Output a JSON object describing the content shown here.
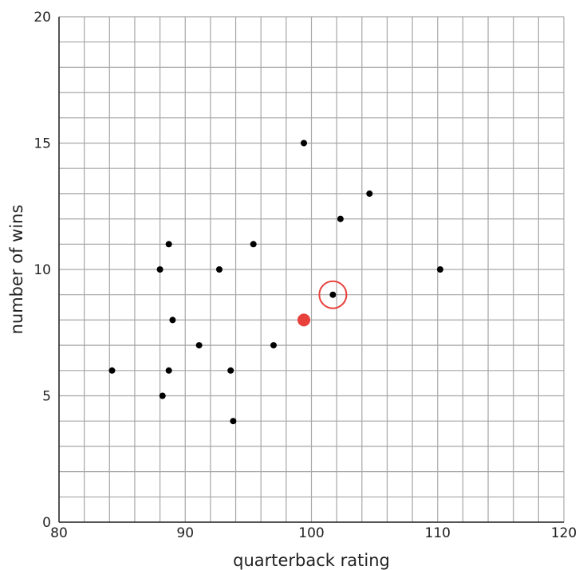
{
  "chart_data": {
    "type": "scatter",
    "xlabel": "quarterback rating",
    "ylabel": "number of wins",
    "xlim": [
      80,
      120
    ],
    "ylim": [
      0,
      20
    ],
    "x_ticks": [
      80,
      90,
      100,
      110,
      120
    ],
    "y_ticks": [
      0,
      5,
      10,
      15,
      20
    ],
    "grid": true,
    "x_minor_step": 2,
    "y_minor_step": 1,
    "points": [
      {
        "x": 84.2,
        "y": 6
      },
      {
        "x": 88.0,
        "y": 10
      },
      {
        "x": 88.2,
        "y": 5
      },
      {
        "x": 88.7,
        "y": 11
      },
      {
        "x": 88.7,
        "y": 6
      },
      {
        "x": 89.0,
        "y": 8
      },
      {
        "x": 91.1,
        "y": 7
      },
      {
        "x": 92.7,
        "y": 10
      },
      {
        "x": 93.6,
        "y": 6
      },
      {
        "x": 93.8,
        "y": 4
      },
      {
        "x": 95.4,
        "y": 11
      },
      {
        "x": 97.0,
        "y": 7
      },
      {
        "x": 99.4,
        "y": 15
      },
      {
        "x": 101.7,
        "y": 9
      },
      {
        "x": 102.3,
        "y": 12
      },
      {
        "x": 104.6,
        "y": 13
      },
      {
        "x": 110.2,
        "y": 10
      }
    ],
    "highlighted_point": {
      "x": 99.4,
      "y": 8,
      "color": "#e8403a"
    },
    "circled_point": {
      "x": 101.7,
      "y": 9,
      "color": "#e8403a"
    },
    "point_color": "#000000"
  }
}
